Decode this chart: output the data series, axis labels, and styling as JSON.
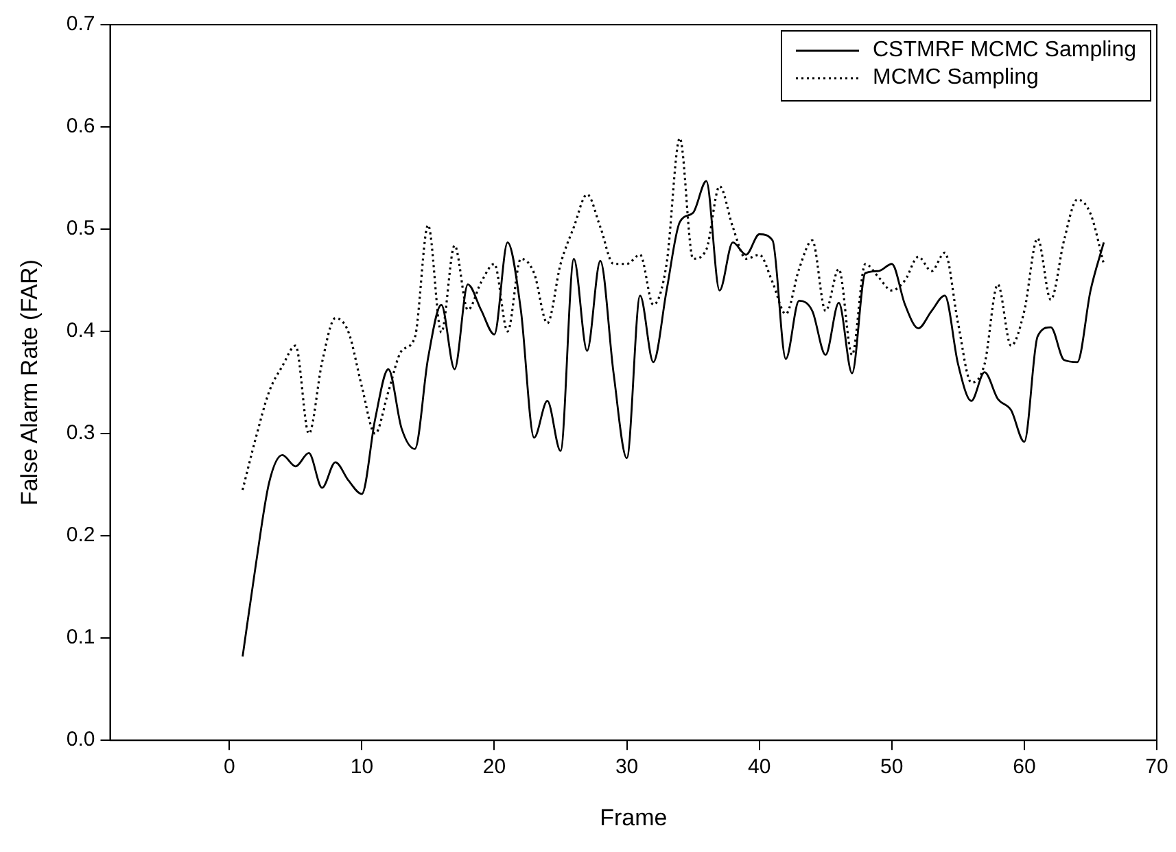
{
  "chart_data": {
    "type": "line",
    "xlabel": "Frame",
    "ylabel": "False Alarm Rate (FAR)",
    "x": [
      1,
      2,
      3,
      4,
      5,
      6,
      7,
      8,
      9,
      10,
      11,
      12,
      13,
      14,
      15,
      16,
      17,
      18,
      19,
      20,
      21,
      22,
      23,
      24,
      25,
      26,
      27,
      28,
      29,
      30,
      31,
      32,
      33,
      34,
      35,
      36,
      37,
      38,
      39,
      40,
      41,
      42,
      43,
      44,
      45,
      46,
      47,
      48,
      49,
      50,
      51,
      52,
      53,
      54,
      55,
      56,
      57,
      58,
      59,
      60,
      61,
      62,
      63,
      64,
      65,
      66
    ],
    "series": [
      {
        "name": "CSTMRF MCMC Sampling",
        "color": "#000000",
        "line_style": "solid",
        "values": [
          0.082,
          0.172,
          0.252,
          0.279,
          0.268,
          0.281,
          0.247,
          0.272,
          0.254,
          0.241,
          0.314,
          0.363,
          0.305,
          0.285,
          0.374,
          0.426,
          0.363,
          0.446,
          0.421,
          0.397,
          0.487,
          0.421,
          0.296,
          0.332,
          0.283,
          0.471,
          0.381,
          0.469,
          0.359,
          0.276,
          0.435,
          0.37,
          0.44,
          0.507,
          0.516,
          0.547,
          0.44,
          0.487,
          0.475,
          0.495,
          0.489,
          0.373,
          0.43,
          0.42,
          0.377,
          0.428,
          0.359,
          0.457,
          0.459,
          0.466,
          0.426,
          0.403,
          0.42,
          0.435,
          0.368,
          0.332,
          0.36,
          0.334,
          0.323,
          0.292,
          0.395,
          0.404,
          0.372,
          0.37,
          0.44,
          0.487
        ]
      },
      {
        "name": "MCMC Sampling",
        "color": "#000000",
        "line_style": "dotted",
        "values": [
          0.245,
          0.296,
          0.341,
          0.366,
          0.386,
          0.3,
          0.37,
          0.413,
          0.399,
          0.346,
          0.3,
          0.341,
          0.381,
          0.394,
          0.504,
          0.399,
          0.484,
          0.421,
          0.448,
          0.466,
          0.4,
          0.471,
          0.457,
          0.408,
          0.466,
          0.502,
          0.534,
          0.502,
          0.466,
          0.466,
          0.475,
          0.426,
          0.466,
          0.589,
          0.471,
          0.48,
          0.542,
          0.502,
          0.471,
          0.475,
          0.448,
          0.417,
          0.461,
          0.489,
          0.42,
          0.461,
          0.377,
          0.466,
          0.453,
          0.44,
          0.45,
          0.473,
          0.459,
          0.477,
          0.408,
          0.35,
          0.368,
          0.446,
          0.386,
          0.42,
          0.491,
          0.431,
          0.489,
          0.529,
          0.515,
          0.466
        ]
      }
    ],
    "xlim": [
      -9,
      70
    ],
    "xticks": [
      0,
      10,
      20,
      30,
      40,
      50,
      60,
      70
    ],
    "ylim": [
      0,
      0.7
    ],
    "yticks": [
      {
        "value": 0,
        "label": "0.0"
      },
      0.1,
      0.2,
      0.3,
      0.4,
      0.5,
      0.6,
      0.7
    ],
    "grid": false,
    "legend": "top right",
    "marker": "none"
  }
}
